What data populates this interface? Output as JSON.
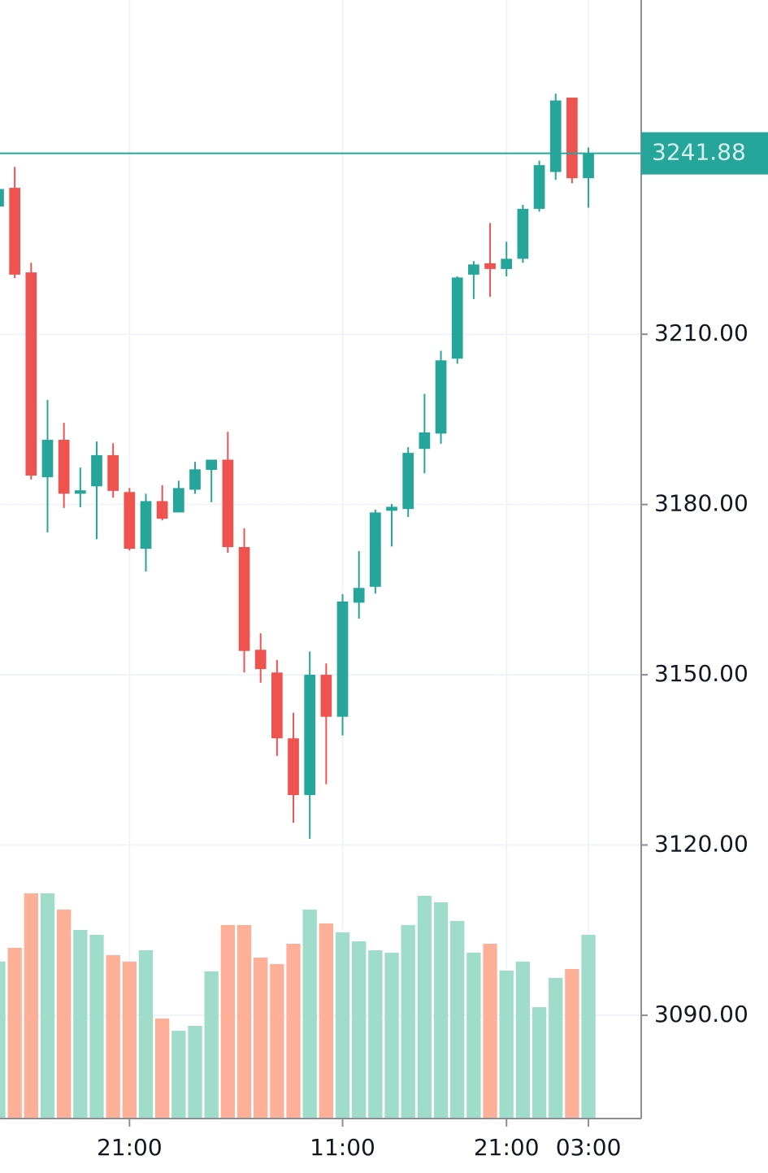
{
  "chart_data": {
    "type": "candlestick",
    "categories": [
      null,
      null,
      null,
      null,
      null,
      null,
      null,
      null,
      null,
      null,
      null,
      null,
      null,
      null,
      null,
      null,
      null,
      null,
      null,
      null,
      null,
      null,
      null,
      null,
      null,
      null,
      null,
      null,
      null,
      null,
      null,
      null,
      null,
      null,
      null,
      null,
      null
    ],
    "open": [
      3232.5,
      3235.8,
      3220.9,
      3184.8,
      3191.4,
      3181.9,
      3183.2,
      3188.7,
      3182.2,
      3172.2,
      3180.6,
      3178.6,
      3182.6,
      3186.1,
      3187.9,
      3172.5,
      3154.4,
      3150.4,
      3138.8,
      3128.8,
      3150.0,
      3142.6,
      3162.7,
      3165.5,
      3178.9,
      3179.2,
      3189.8,
      3192.5,
      3205.7,
      3220.5,
      3222.5,
      3221.5,
      3223.3,
      3232.1,
      3238.6,
      3251.7,
      3237.5
    ],
    "high": [
      3236.0,
      3239.5,
      3222.6,
      3198.4,
      3194.4,
      3186.5,
      3191.1,
      3190.8,
      3182.9,
      3181.9,
      3183.4,
      3184.2,
      3187.5,
      3187.9,
      3192.8,
      3175.8,
      3157.3,
      3152.6,
      3143.3,
      3154.1,
      3152.0,
      3164.2,
      3171.8,
      3179.1,
      3180.1,
      3190.1,
      3199.5,
      3207.1,
      3220.2,
      3222.9,
      3229.6,
      3226.3,
      3232.8,
      3240.6,
      3252.4,
      3251.7,
      3242.9
    ],
    "low": [
      3232.0,
      3219.9,
      3184.4,
      3175.1,
      3179.4,
      3179.5,
      3173.9,
      3181.2,
      3171.9,
      3168.2,
      3177.2,
      3178.6,
      3181.9,
      3180.4,
      3171.5,
      3150.4,
      3148.6,
      3135.7,
      3123.9,
      3121.1,
      3130.7,
      3139.3,
      3159.9,
      3164.3,
      3172.6,
      3177.8,
      3185.5,
      3190.7,
      3204.8,
      3216.2,
      3216.6,
      3220.2,
      3222.6,
      3231.6,
      3237.2,
      3236.6,
      3232.3
    ],
    "close": [
      3235.6,
      3220.5,
      3185.1,
      3191.4,
      3181.9,
      3182.5,
      3188.7,
      3182.4,
      3172.2,
      3180.6,
      3177.5,
      3182.9,
      3186.2,
      3187.9,
      3172.5,
      3154.2,
      3151.0,
      3138.8,
      3128.8,
      3150.0,
      3142.6,
      3162.9,
      3165.3,
      3178.6,
      3179.6,
      3189.1,
      3192.7,
      3205.4,
      3220.0,
      3222.3,
      3221.5,
      3223.3,
      3232.1,
      3239.8,
      3251.2,
      3237.5,
      3241.88
    ],
    "volume": [
      193,
      210,
      277,
      277,
      257,
      232,
      226,
      201,
      193,
      207,
      123,
      108,
      114,
      181,
      238,
      238,
      198,
      190,
      215,
      257,
      240,
      229,
      218,
      207,
      204,
      238,
      274,
      266,
      243,
      204,
      215,
      182,
      193,
      137,
      173,
      184,
      226
    ],
    "vlim": [
      0,
      1376
    ],
    "xlim": [
      0.1,
      39.22
    ],
    "xticks": [
      {
        "value": 8,
        "label": "21:00"
      },
      {
        "value": 21,
        "label": "11:00"
      },
      {
        "value": 31,
        "label": "21:00"
      },
      {
        "value": 36,
        "label": "03:00"
      }
    ],
    "ylim": [
      3071.8,
      3268.9
    ],
    "yticks": [
      {
        "value": 3090,
        "label": "3090.00"
      },
      {
        "value": 3120,
        "label": "3120.00"
      },
      {
        "value": 3150,
        "label": "3150.00"
      },
      {
        "value": 3180,
        "label": "3180.00"
      },
      {
        "value": 3210,
        "label": "3210.00"
      }
    ],
    "last_price": 3241.88,
    "up_color": "#26a69a",
    "down_color": "#ef5350",
    "volume_up_color": "#9fdcc9",
    "volume_down_color": "#fdaf98",
    "grid": true
  }
}
